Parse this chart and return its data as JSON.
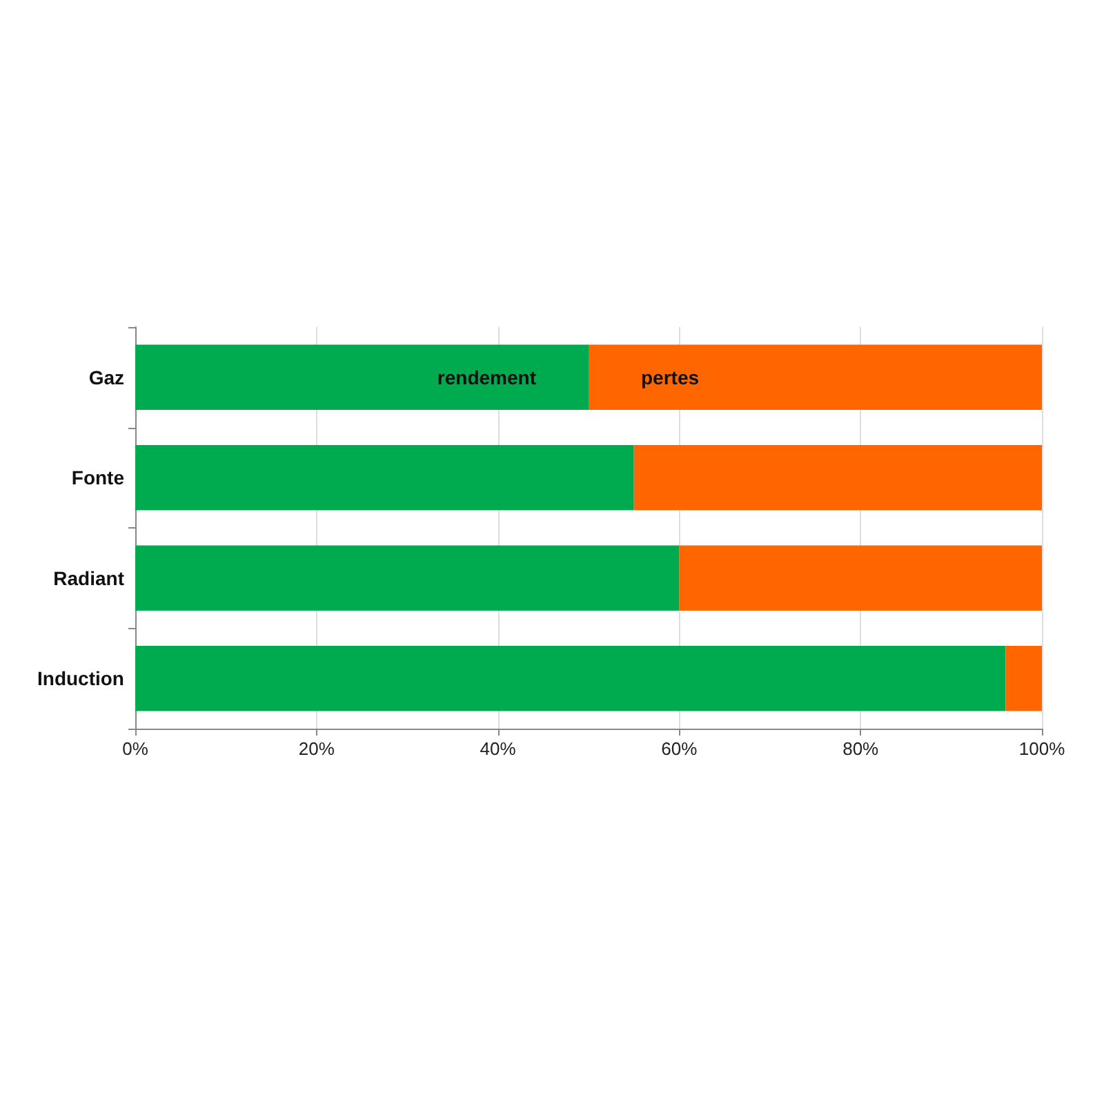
{
  "chart_data": {
    "type": "bar",
    "orientation": "horizontal",
    "stacked": true,
    "categories": [
      "Gaz",
      "Fonte",
      "Radiant",
      "Induction"
    ],
    "series": [
      {
        "name": "rendement",
        "color": "#00aa4f",
        "values": [
          50,
          55,
          60,
          96
        ]
      },
      {
        "name": "pertes",
        "color": "#ff6600",
        "values": [
          50,
          45,
          40,
          4
        ]
      }
    ],
    "xlim": [
      0,
      100
    ],
    "xticks": [
      {
        "value": 0,
        "label": "0%"
      },
      {
        "value": 20,
        "label": "20%"
      },
      {
        "value": 40,
        "label": "40%"
      },
      {
        "value": 60,
        "label": "60%"
      },
      {
        "value": 80,
        "label": "80%"
      },
      {
        "value": 100,
        "label": "100%"
      }
    ],
    "grid": "x",
    "legend": false
  }
}
